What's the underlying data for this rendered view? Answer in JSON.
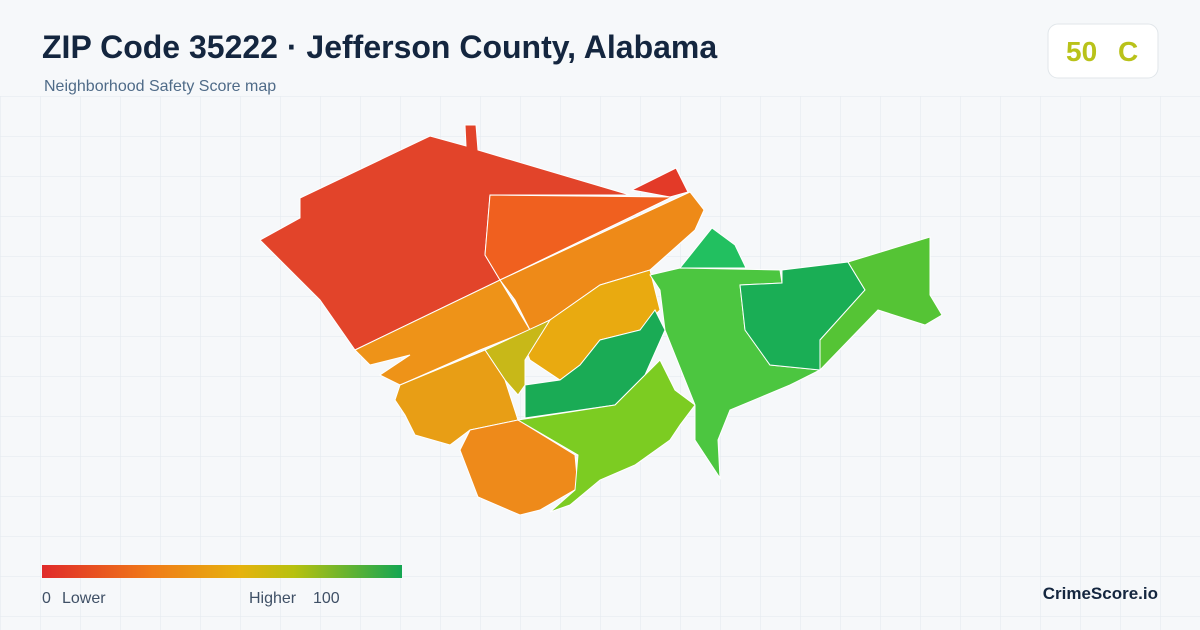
{
  "header": {
    "title": "ZIP Code 35222 · Jefferson County, Alabama",
    "subtitle": "Neighborhood Safety Score map"
  },
  "badge": {
    "score": "50",
    "grade": "C"
  },
  "legend": {
    "min": "0",
    "min_label": "Lower",
    "max_label": "Higher",
    "max": "100"
  },
  "brand": "CrimeScore.io"
}
